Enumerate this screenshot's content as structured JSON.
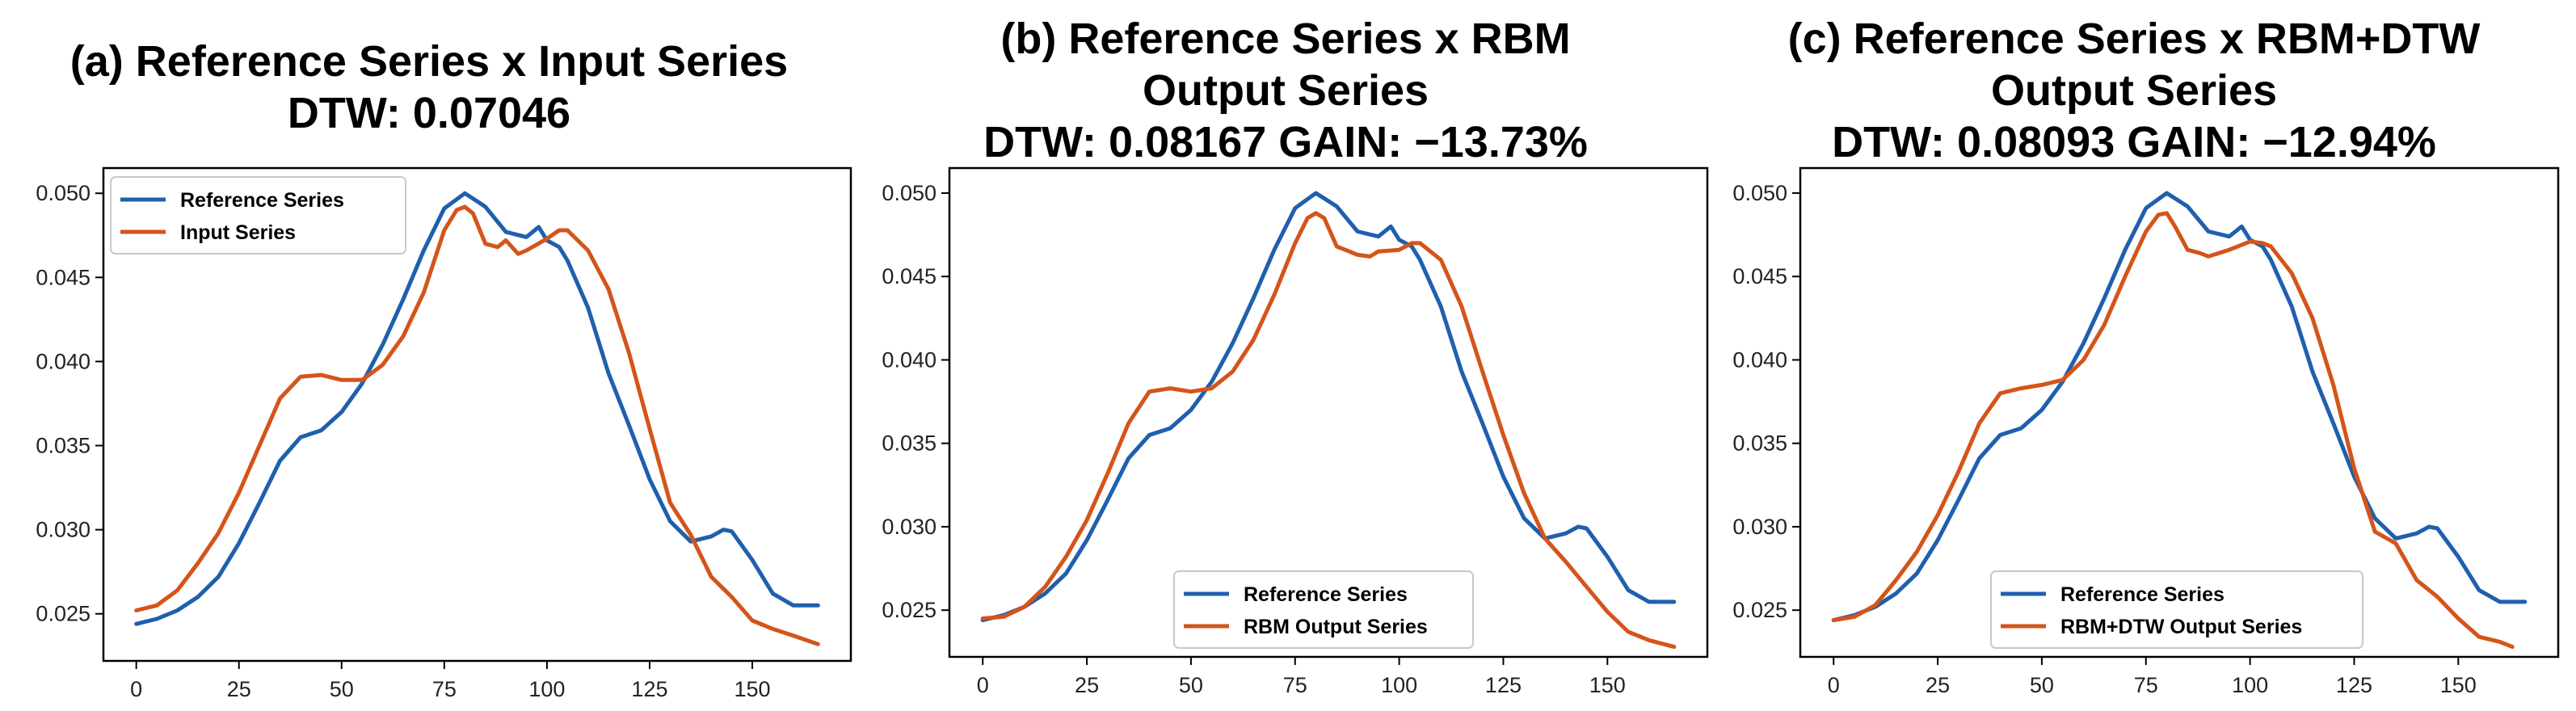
{
  "chart_data": [
    {
      "type": "line",
      "title_lines": [
        "(a) Reference Series x Input Series",
        "DTW: 0.07046"
      ],
      "xlabel": "",
      "ylabel": "",
      "xlim": [
        -8,
        174
      ],
      "ylim": [
        0.0222,
        0.0515
      ],
      "xticks": [
        "0",
        "25",
        "50",
        "75",
        "100",
        "125",
        "150"
      ],
      "yticks": [
        "0.025",
        "0.030",
        "0.035",
        "0.040",
        "0.045",
        "0.050"
      ],
      "legend_position": "top-left",
      "series": [
        {
          "name": "Reference Series",
          "color": "#1f5fae",
          "x": [
            0,
            5,
            10,
            15,
            20,
            25,
            30,
            35,
            40,
            45,
            50,
            55,
            60,
            65,
            70,
            75,
            80,
            85,
            90,
            95,
            98,
            100,
            103,
            105,
            110,
            115,
            120,
            125,
            130,
            135,
            140,
            143,
            145,
            150,
            155,
            160,
            166
          ],
          "y": [
            0.0244,
            0.0247,
            0.0252,
            0.026,
            0.0272,
            0.0292,
            0.0316,
            0.0341,
            0.0355,
            0.0359,
            0.037,
            0.0387,
            0.041,
            0.0437,
            0.0466,
            0.0491,
            0.05,
            0.0492,
            0.0477,
            0.0474,
            0.048,
            0.0472,
            0.0468,
            0.046,
            0.0432,
            0.0393,
            0.0362,
            0.033,
            0.0305,
            0.0293,
            0.0296,
            0.03,
            0.0299,
            0.0282,
            0.0262,
            0.0255,
            0.0255
          ]
        },
        {
          "name": "Input Series",
          "color": "#d4541a",
          "x": [
            0,
            5,
            10,
            15,
            20,
            25,
            30,
            35,
            40,
            45,
            50,
            55,
            60,
            65,
            70,
            75,
            78,
            80,
            82,
            85,
            88,
            90,
            93,
            95,
            100,
            103,
            105,
            110,
            115,
            120,
            125,
            130,
            135,
            140,
            145,
            150,
            155,
            160,
            166
          ],
          "y": [
            0.0252,
            0.0255,
            0.0264,
            0.028,
            0.0298,
            0.0322,
            0.035,
            0.0378,
            0.0391,
            0.0392,
            0.0389,
            0.0389,
            0.0398,
            0.0415,
            0.0441,
            0.0478,
            0.049,
            0.0492,
            0.0488,
            0.047,
            0.0468,
            0.0472,
            0.0464,
            0.0466,
            0.0473,
            0.0478,
            0.0478,
            0.0466,
            0.0443,
            0.0405,
            0.036,
            0.0316,
            0.0297,
            0.0272,
            0.026,
            0.0246,
            0.0241,
            0.0237,
            0.0232
          ]
        }
      ]
    },
    {
      "type": "line",
      "title_lines": [
        "(b) Reference Series x RBM",
        "Output Series",
        "DTW: 0.08167 GAIN: −13.73%"
      ],
      "xlabel": "",
      "ylabel": "",
      "xlim": [
        -8,
        174
      ],
      "ylim": [
        0.0222,
        0.0515
      ],
      "xticks": [
        "0",
        "25",
        "50",
        "75",
        "100",
        "125",
        "150"
      ],
      "yticks": [
        "0.025",
        "0.030",
        "0.035",
        "0.040",
        "0.045",
        "0.050"
      ],
      "legend_position": "bottom-right",
      "series": [
        {
          "name": "Reference Series",
          "color": "#1f5fae",
          "x": [
            0,
            5,
            10,
            15,
            20,
            25,
            30,
            35,
            40,
            45,
            50,
            55,
            60,
            65,
            70,
            75,
            80,
            85,
            90,
            95,
            98,
            100,
            103,
            105,
            110,
            115,
            120,
            125,
            130,
            135,
            140,
            143,
            145,
            150,
            155,
            160,
            166
          ],
          "y": [
            0.0244,
            0.0247,
            0.0252,
            0.026,
            0.0272,
            0.0292,
            0.0316,
            0.0341,
            0.0355,
            0.0359,
            0.037,
            0.0387,
            0.041,
            0.0437,
            0.0466,
            0.0491,
            0.05,
            0.0492,
            0.0477,
            0.0474,
            0.048,
            0.0472,
            0.0468,
            0.046,
            0.0432,
            0.0393,
            0.0362,
            0.033,
            0.0305,
            0.0293,
            0.0296,
            0.03,
            0.0299,
            0.0282,
            0.0262,
            0.0255,
            0.0255
          ]
        },
        {
          "name": "RBM Output Series",
          "color": "#d4541a",
          "x": [
            0,
            5,
            10,
            15,
            20,
            25,
            30,
            35,
            40,
            45,
            50,
            55,
            60,
            65,
            70,
            75,
            78,
            80,
            82,
            85,
            88,
            90,
            93,
            95,
            100,
            103,
            105,
            110,
            115,
            120,
            125,
            130,
            135,
            140,
            145,
            150,
            155,
            160,
            166
          ],
          "y": [
            0.0245,
            0.0246,
            0.0252,
            0.0264,
            0.0282,
            0.0304,
            0.0332,
            0.0362,
            0.0381,
            0.0383,
            0.0381,
            0.0383,
            0.0393,
            0.0412,
            0.0439,
            0.047,
            0.0485,
            0.0488,
            0.0485,
            0.0468,
            0.0465,
            0.0463,
            0.0462,
            0.0465,
            0.0466,
            0.047,
            0.047,
            0.046,
            0.0432,
            0.0393,
            0.0355,
            0.032,
            0.0293,
            0.0279,
            0.0264,
            0.0249,
            0.0237,
            0.0232,
            0.0228
          ]
        }
      ]
    },
    {
      "type": "line",
      "title_lines": [
        "(c) Reference Series x RBM+DTW",
        "Output Series",
        "DTW: 0.08093 GAIN: −12.94%"
      ],
      "xlabel": "",
      "ylabel": "",
      "xlim": [
        -8,
        174
      ],
      "ylim": [
        0.0222,
        0.0515
      ],
      "xticks": [
        "0",
        "25",
        "50",
        "75",
        "100",
        "125",
        "150"
      ],
      "yticks": [
        "0.025",
        "0.030",
        "0.035",
        "0.040",
        "0.045",
        "0.050"
      ],
      "legend_position": "bottom-right",
      "series": [
        {
          "name": "Reference Series",
          "color": "#1f5fae",
          "x": [
            0,
            5,
            10,
            15,
            20,
            25,
            30,
            35,
            40,
            45,
            50,
            55,
            60,
            65,
            70,
            75,
            80,
            85,
            90,
            95,
            98,
            100,
            103,
            105,
            110,
            115,
            120,
            125,
            130,
            135,
            140,
            143,
            145,
            150,
            155,
            160,
            166
          ],
          "y": [
            0.0244,
            0.0247,
            0.0252,
            0.026,
            0.0272,
            0.0292,
            0.0316,
            0.0341,
            0.0355,
            0.0359,
            0.037,
            0.0387,
            0.041,
            0.0437,
            0.0466,
            0.0491,
            0.05,
            0.0492,
            0.0477,
            0.0474,
            0.048,
            0.0472,
            0.0468,
            0.046,
            0.0432,
            0.0393,
            0.0362,
            0.033,
            0.0305,
            0.0293,
            0.0296,
            0.03,
            0.0299,
            0.0282,
            0.0262,
            0.0255,
            0.0255
          ]
        },
        {
          "name": "RBM+DTW Output Series",
          "color": "#d4541a",
          "x": [
            0,
            5,
            10,
            15,
            20,
            25,
            30,
            35,
            40,
            45,
            50,
            55,
            60,
            65,
            70,
            75,
            78,
            80,
            82,
            85,
            88,
            90,
            95,
            100,
            103,
            105,
            110,
            115,
            120,
            125,
            130,
            135,
            140,
            145,
            150,
            155,
            160,
            163
          ],
          "y": [
            0.0244,
            0.0246,
            0.0253,
            0.0268,
            0.0285,
            0.0307,
            0.0333,
            0.0362,
            0.038,
            0.0383,
            0.0385,
            0.0388,
            0.04,
            0.0421,
            0.045,
            0.0477,
            0.0487,
            0.0488,
            0.048,
            0.0466,
            0.0464,
            0.0462,
            0.0466,
            0.0471,
            0.047,
            0.0468,
            0.0452,
            0.0425,
            0.0385,
            0.0335,
            0.0297,
            0.029,
            0.0268,
            0.0258,
            0.0245,
            0.0234,
            0.0231,
            0.0228
          ]
        }
      ]
    }
  ]
}
